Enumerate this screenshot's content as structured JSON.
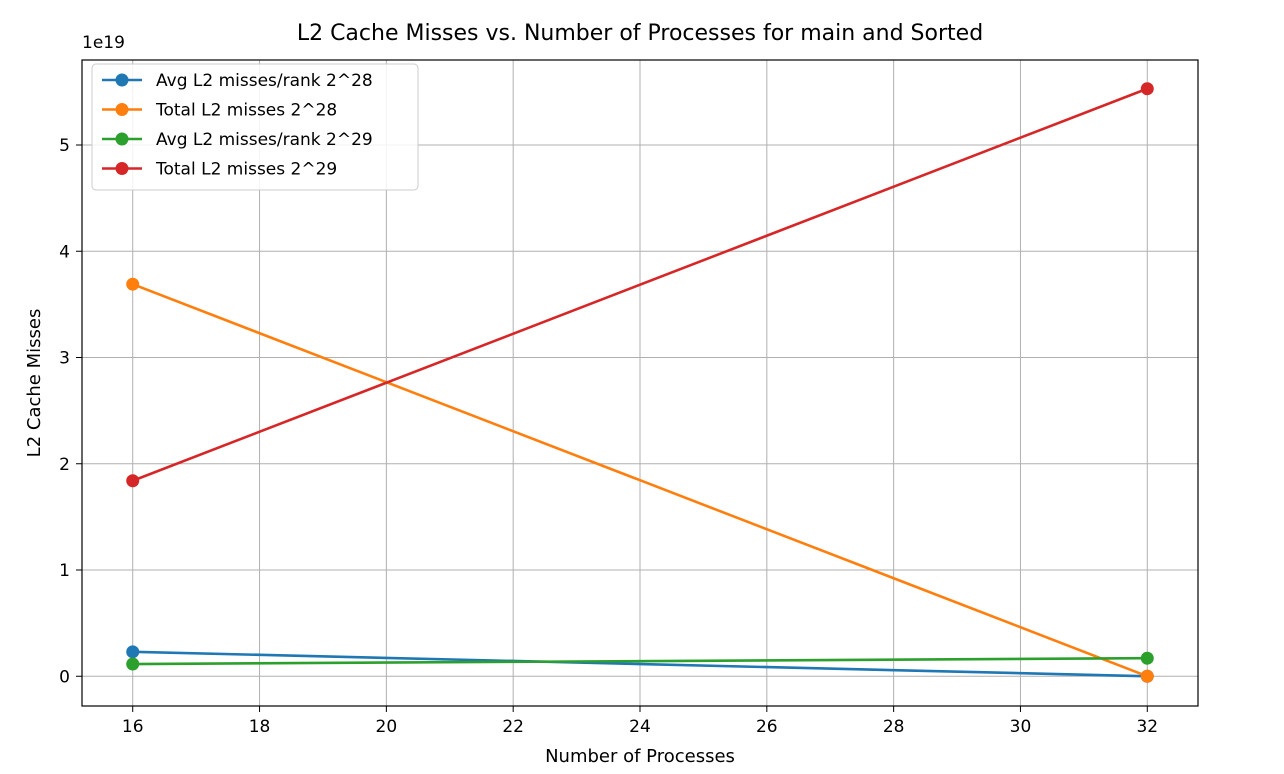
{
  "chart_data": {
    "type": "line",
    "title": "L2 Cache Misses vs. Number of Processes for main and Sorted",
    "xlabel": "Number of Processes",
    "ylabel": "L2 Cache Misses",
    "y_offset_label": "1e19",
    "y_scale_factor": 1e+19,
    "xlim": [
      15.2,
      32.8
    ],
    "ylim": [
      -0.28,
      5.8
    ],
    "x_ticks": [
      16,
      18,
      20,
      22,
      24,
      26,
      28,
      30,
      32
    ],
    "y_ticks": [
      0,
      1,
      2,
      3,
      4,
      5
    ],
    "grid": true,
    "legend_position": "top-left",
    "x": [
      16,
      32
    ],
    "series": [
      {
        "name": "Avg L2 misses/rank 2^28",
        "color": "#1f77b4",
        "values": [
          0.23,
          0.0
        ]
      },
      {
        "name": "Total L2 misses 2^28",
        "color": "#ff7f0e",
        "values": [
          3.69,
          0.0
        ]
      },
      {
        "name": "Avg L2 misses/rank 2^29",
        "color": "#2ca02c",
        "values": [
          0.115,
          0.17
        ]
      },
      {
        "name": "Total L2 misses 2^29",
        "color": "#d62728",
        "values": [
          1.84,
          5.53
        ]
      }
    ]
  }
}
